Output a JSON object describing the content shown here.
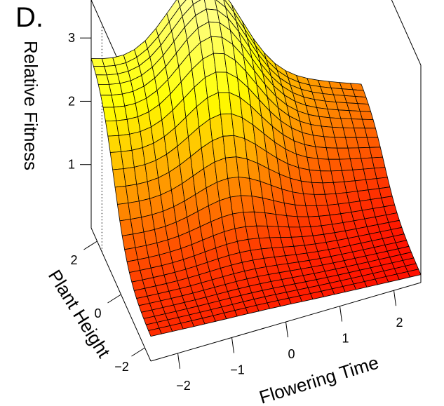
{
  "panel_label": "D.",
  "chart_data": {
    "type": "surface3d",
    "title": "",
    "xlabel": "Flowering Time",
    "ylabel": "Plant Height",
    "zlabel": "Relative Fitness",
    "x_ticks": [
      "−2",
      "−1",
      "0",
      "1",
      "2"
    ],
    "y_ticks": [
      "−2",
      "0",
      "2"
    ],
    "z_ticks": [
      "1",
      "2",
      "3"
    ],
    "xlim": [
      -2.5,
      2.5
    ],
    "ylim": [
      -2.5,
      2.5
    ],
    "zlim": [
      0,
      3.6
    ],
    "grid_size": [
      26,
      26
    ],
    "surface_description": "fitness rises with plant height; ridge peak near flowering time -0.4 at max plant height",
    "approx_values": {
      "peak": {
        "x": -0.4,
        "y": 2.5,
        "z": 3.5
      },
      "left_back_edge": {
        "x": -2.5,
        "y": 2.5,
        "z": 2.1
      },
      "front_left_corner": {
        "x": -2.5,
        "y": -2.5,
        "z": 0.25
      },
      "front_right_corner": {
        "x": 2.5,
        "y": -2.5,
        "z": 0.05
      }
    },
    "colormap": [
      "#ff0000",
      "#ff8000",
      "#ffff00",
      "#ffff9f"
    ]
  }
}
